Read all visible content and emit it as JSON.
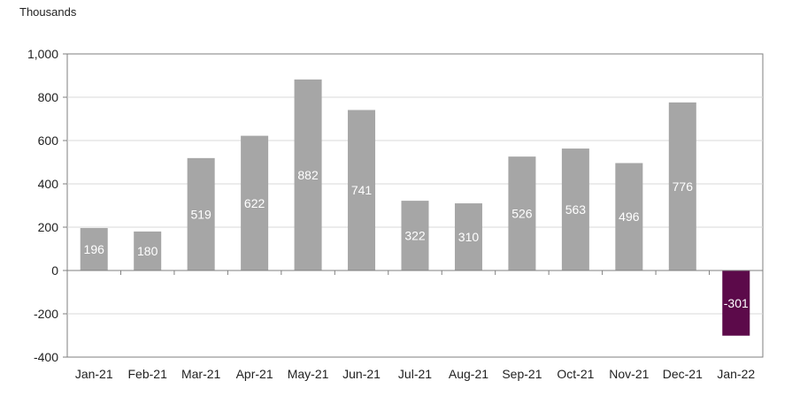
{
  "chart_data": {
    "type": "bar",
    "ylabel": "Thousands",
    "ylim": [
      -400,
      1000
    ],
    "yticks": [
      "1,000",
      "800",
      "600",
      "400",
      "200",
      "0",
      "-200",
      "-400"
    ],
    "ytick_values": [
      1000,
      800,
      600,
      400,
      200,
      0,
      -200,
      -400
    ],
    "categories": [
      "Jan-21",
      "Feb-21",
      "Mar-21",
      "Apr-21",
      "May-21",
      "Jun-21",
      "Jul-21",
      "Aug-21",
      "Sep-21",
      "Oct-21",
      "Nov-21",
      "Dec-21",
      "Jan-22"
    ],
    "values": [
      196,
      180,
      519,
      622,
      882,
      741,
      322,
      310,
      526,
      563,
      496,
      776,
      -301
    ],
    "data_labels": [
      "196",
      "180",
      "519",
      "622",
      "882",
      "741",
      "322",
      "310",
      "526",
      "563",
      "496",
      "776",
      "-301"
    ],
    "colors": {
      "positive": "#a6a6a6",
      "negative": "#5c0a4a",
      "axis": "#7f7f7f",
      "grid": "#d9d9d9"
    },
    "grid": "horizontal"
  }
}
